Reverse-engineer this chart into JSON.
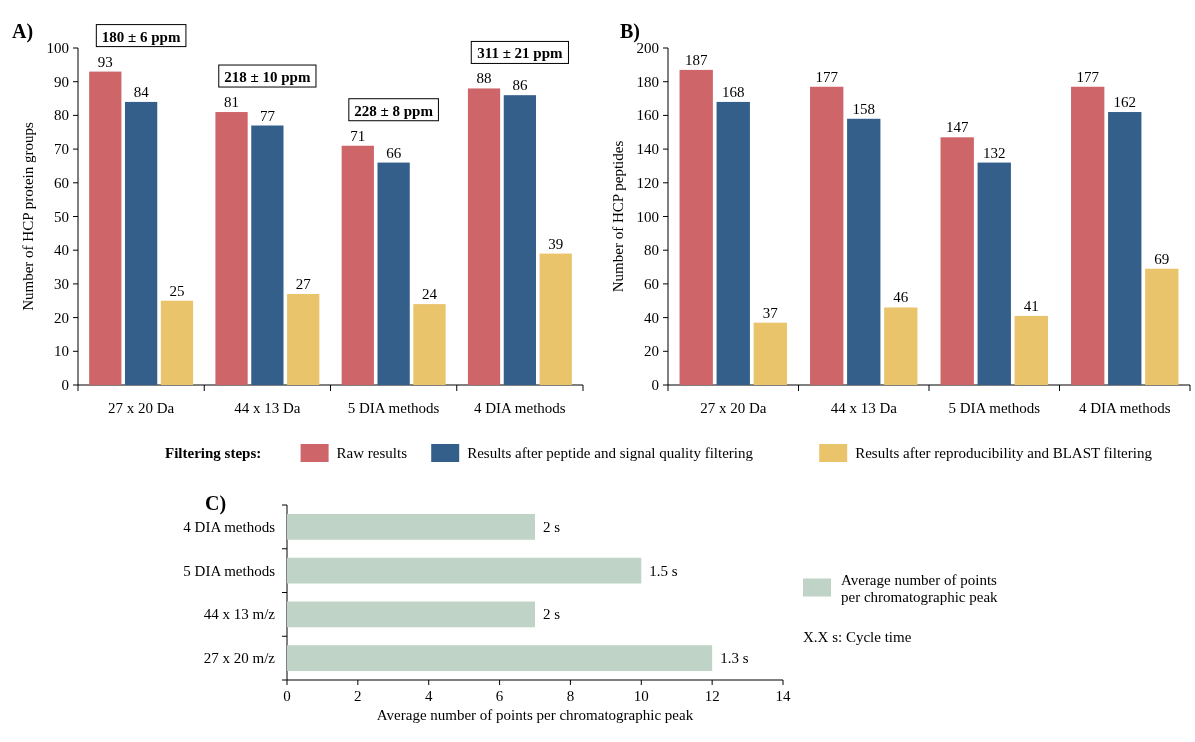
{
  "chart_data": [
    {
      "type": "bar",
      "title": "A)",
      "ylabel": "Number of HCP protein groups",
      "categories": [
        "27 x 20 Da",
        "44 x 13 Da",
        "5 DIA methods",
        "4 DIA methods"
      ],
      "series": [
        {
          "name": "Raw results",
          "color": "#cd6569",
          "values": [
            93,
            81,
            71,
            88
          ]
        },
        {
          "name": "Results after peptide and signal quality filtering",
          "color": "#335f8a",
          "values": [
            84,
            77,
            66,
            86
          ]
        },
        {
          "name": "Results after reproducibility and BLAST filtering",
          "color": "#e9c46a",
          "values": [
            25,
            27,
            24,
            39
          ]
        }
      ],
      "ylim": [
        0,
        100
      ],
      "yticks": [
        0,
        10,
        20,
        30,
        40,
        50,
        60,
        70,
        80,
        90,
        100
      ],
      "data_labels": true,
      "legend": "bottom",
      "legend_title": "Filtering steps:",
      "annotations": [
        "180 ± 6 ppm",
        "218 ± 10 ppm",
        "228 ± 8 ppm",
        "311 ± 21 ppm"
      ]
    },
    {
      "type": "bar",
      "title": "B)",
      "ylabel": "Number of HCP peptides",
      "categories": [
        "27 x 20 Da",
        "44 x 13 Da",
        "5 DIA methods",
        "4 DIA methods"
      ],
      "series": [
        {
          "color": "#cd6569",
          "values": [
            187,
            177,
            147,
            177
          ]
        },
        {
          "color": "#335f8a",
          "values": [
            168,
            158,
            132,
            162
          ]
        },
        {
          "color": "#e9c46a",
          "values": [
            37,
            46,
            41,
            69
          ]
        }
      ],
      "ylim": [
        0,
        200
      ],
      "yticks": [
        0,
        20,
        40,
        60,
        80,
        100,
        120,
        140,
        160,
        180,
        200
      ],
      "data_labels": true
    },
    {
      "type": "bar",
      "title": "C)",
      "orientation": "horizontal",
      "xlabel": "Average number of points per chromatographic peak",
      "categories": [
        "4 DIA methods",
        "5 DIA methods",
        "44 x 13 m/z",
        "27 x 20 m/z"
      ],
      "series": [
        {
          "name": "Average number of points per chromatographic peak",
          "color": "#bfd4c6",
          "values": [
            7,
            10,
            7,
            12
          ]
        }
      ],
      "xlim": [
        0,
        14
      ],
      "xticks": [
        0,
        2,
        4,
        6,
        8,
        10,
        12,
        14
      ],
      "legend": "right",
      "annotations": [
        {
          "text": "2 s",
          "x": 7,
          "y": "4 DIA methods"
        },
        {
          "text": "1.5 s",
          "x": 10,
          "y": "5 DIA methods"
        },
        {
          "text": "2 s",
          "x": 7,
          "y": "44 x 13 m/z"
        },
        {
          "text": "1.3 s",
          "x": 12,
          "y": "27 x 20 m/z"
        },
        "X.X s: Cycle time"
      ]
    }
  ]
}
